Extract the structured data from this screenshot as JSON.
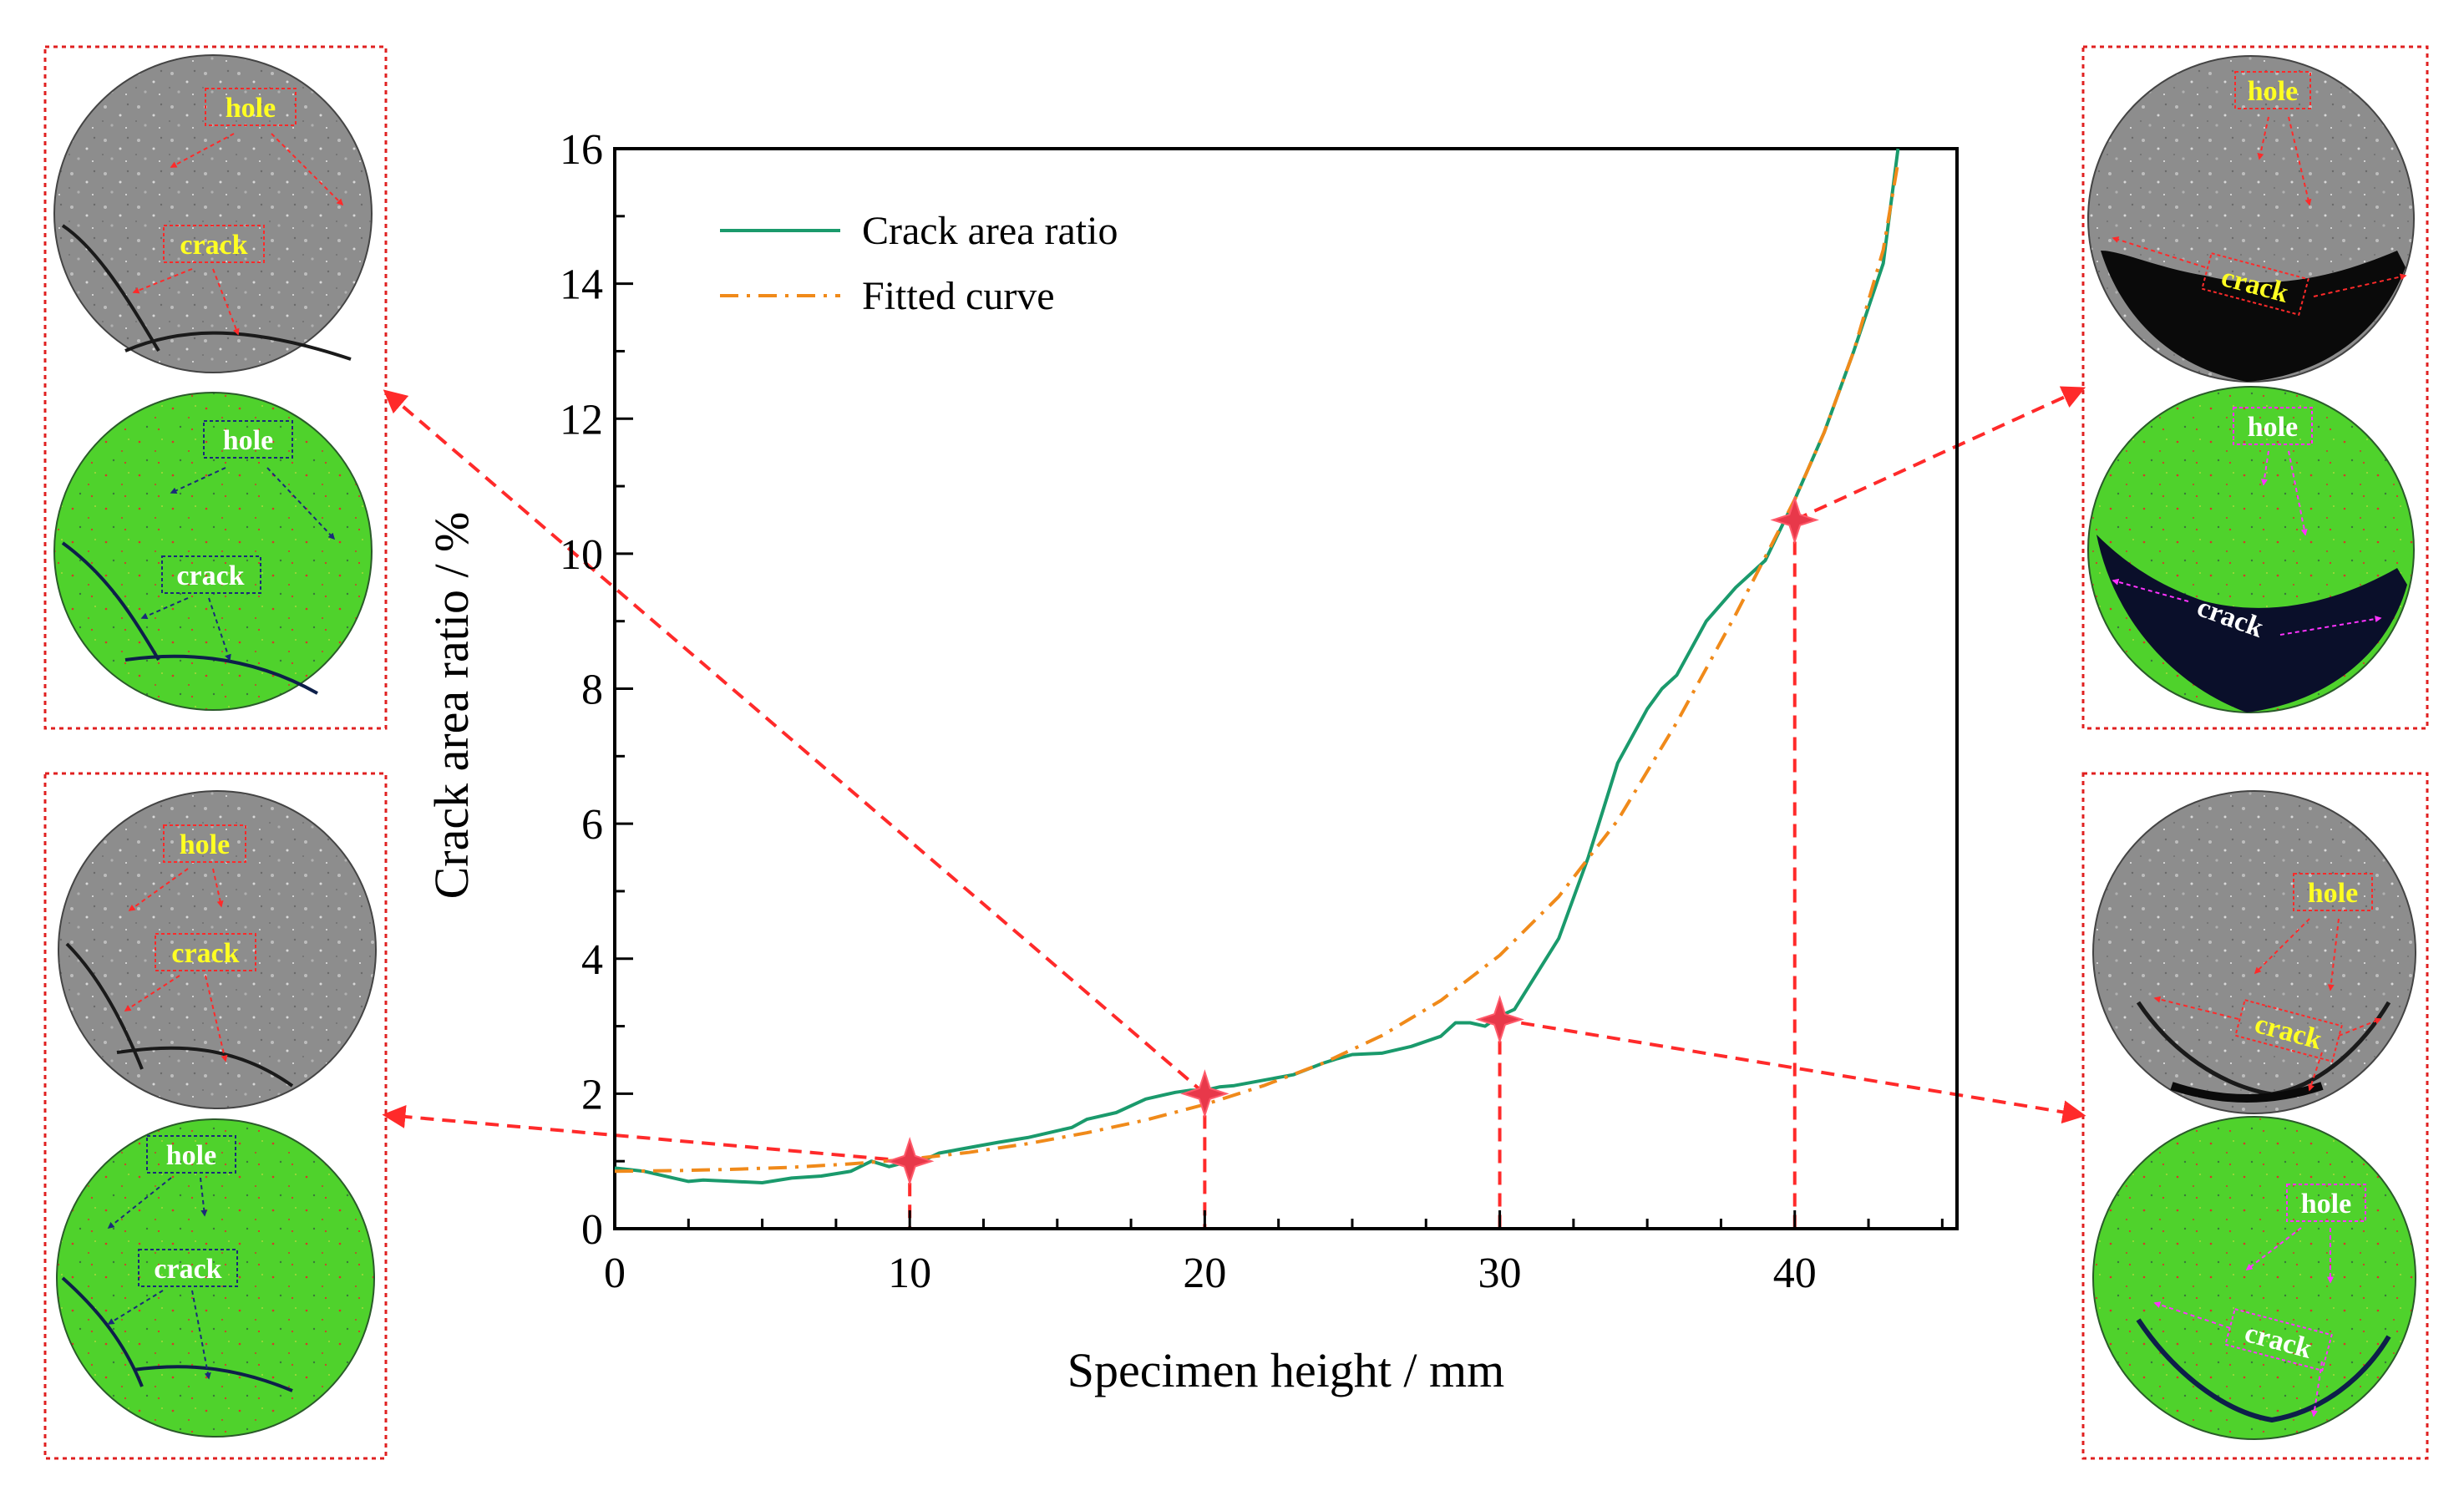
{
  "chart_data": {
    "type": "line",
    "title": "",
    "xlabel": "Specimen height / mm",
    "ylabel": "Crack area ratio / %",
    "xlim": [
      0,
      45.5
    ],
    "ylim": [
      0,
      16
    ],
    "x_ticks": [
      0,
      10,
      20,
      30,
      40
    ],
    "y_ticks": [
      0,
      2,
      4,
      6,
      8,
      10,
      12,
      14,
      16
    ],
    "x_tick_labels": [
      "0",
      "10",
      "20",
      "30",
      "40"
    ],
    "y_tick_labels": [
      "0",
      "2",
      "4",
      "6",
      "8",
      "10",
      "12",
      "14",
      "16"
    ],
    "grid": false,
    "legend_position": "top-left",
    "series": [
      {
        "name": "Crack area ratio",
        "color": "#1a9a6c",
        "style": "solid",
        "x": [
          0,
          1,
          2,
          2.5,
          3,
          4,
          5,
          6,
          7,
          8,
          8.7,
          9.3,
          10,
          10.5,
          11,
          12,
          13,
          14,
          15,
          15.5,
          16,
          17,
          18,
          19,
          19.5,
          20,
          20.5,
          21,
          22,
          23,
          24,
          24.5,
          25,
          26,
          27,
          28,
          28.5,
          29,
          29.5,
          30,
          30.5,
          31,
          32,
          33,
          33.5,
          34,
          35,
          35.5,
          36,
          37,
          38,
          38.5,
          39,
          40,
          41,
          42,
          43,
          43.5
        ],
        "y": [
          0.9,
          0.85,
          0.75,
          0.7,
          0.72,
          0.7,
          0.68,
          0.75,
          0.78,
          0.85,
          1.0,
          0.92,
          1.0,
          1.02,
          1.12,
          1.2,
          1.28,
          1.35,
          1.45,
          1.5,
          1.62,
          1.72,
          1.92,
          2.02,
          2.05,
          2.05,
          2.1,
          2.12,
          2.2,
          2.28,
          2.45,
          2.52,
          2.58,
          2.6,
          2.7,
          2.85,
          3.05,
          3.05,
          3.0,
          3.15,
          3.25,
          3.6,
          4.3,
          5.5,
          6.2,
          6.9,
          7.7,
          8.0,
          8.2,
          9.0,
          9.5,
          9.7,
          9.9,
          10.8,
          11.8,
          13.0,
          14.3,
          16.0
        ]
      },
      {
        "name": "Fitted curve",
        "color": "#f08a1a",
        "style": "dash-dot",
        "x": [
          0,
          2,
          4,
          6,
          8,
          10,
          12,
          14,
          16,
          18,
          20,
          22,
          24,
          26,
          28,
          30,
          32,
          34,
          36,
          38,
          40,
          41,
          42,
          43,
          43.5
        ],
        "y": [
          0.85,
          0.86,
          0.88,
          0.91,
          0.96,
          1.03,
          1.13,
          1.26,
          1.42,
          1.61,
          1.84,
          2.12,
          2.45,
          2.86,
          3.38,
          4.05,
          4.92,
          6.05,
          7.5,
          9.1,
          10.8,
          11.8,
          13.0,
          14.5,
          15.8
        ]
      }
    ],
    "markers": [
      {
        "x": 10,
        "y": 1.0
      },
      {
        "x": 20,
        "y": 2.0
      },
      {
        "x": 30,
        "y": 3.1
      },
      {
        "x": 40,
        "y": 10.5
      }
    ],
    "annotations": {
      "hole": "hole",
      "crack": "crack"
    },
    "colors": {
      "crack_line": "#1a9a6c",
      "fitted_line": "#f08a1a",
      "connector": "#ff2a2a",
      "gray_image": "#8f8f8f",
      "green_image": "#4ccf2a",
      "dark_crack": "#0d1f4a",
      "yellow_label": "#ffff22",
      "white_label": "#ffffff",
      "magenta_arrow": "#ff33ff",
      "navy_arrow": "#1a2a7a"
    }
  }
}
